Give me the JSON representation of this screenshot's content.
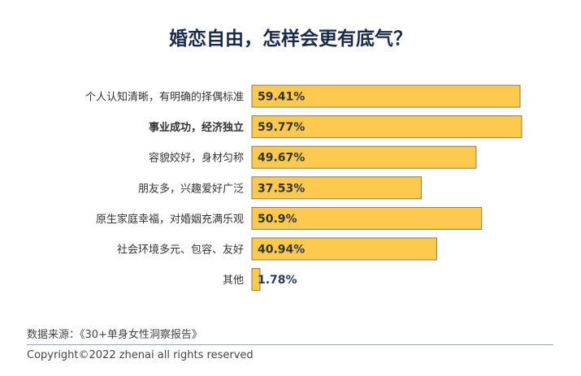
{
  "chart_data": {
    "type": "bar",
    "orientation": "horizontal",
    "title": "婚恋自由，怎样会更有底气？",
    "categories": [
      "个人认知清晰，有明确的择偶标准",
      "事业成功，经济独立",
      "容貌姣好，身材匀称",
      "朋友多，兴趣爱好广泛",
      "原生家庭幸福，对婚姻充满乐观",
      "社会环境多元、包容、友好",
      "其他"
    ],
    "values": [
      59.41,
      59.77,
      49.67,
      37.53,
      50.9,
      40.94,
      1.78
    ],
    "data_labels": [
      "59.41%",
      "59.77%",
      "49.67%",
      "37.53%",
      "50.9%",
      "40.94%",
      "1.78%"
    ],
    "bold_category": "事业成功，经济独立",
    "xlim": [
      0,
      60
    ],
    "grid": false,
    "bar_color": "#fdc94f",
    "bar_border": "#8a7a55",
    "title_color": "#1c2b4a"
  },
  "footer": {
    "source": "数据来源：《30+单身女性洞察报告》",
    "copyright": "Copyright©2022  zhenai  all rights reserved"
  }
}
